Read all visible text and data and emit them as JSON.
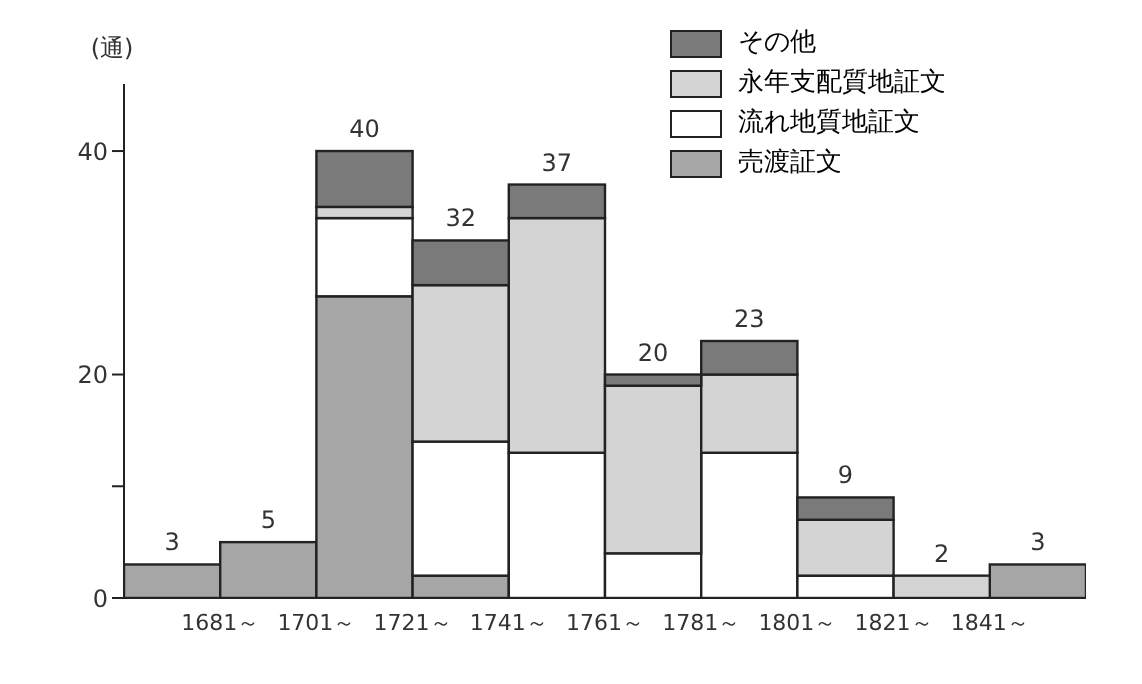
{
  "chart_data": {
    "type": "bar",
    "stacked": true,
    "ylabel": "(通)",
    "x": [
      1671,
      1691,
      1711,
      1731,
      1751,
      1771,
      1791,
      1811,
      1831,
      1851
    ],
    "xlim": [
      1661,
      1861
    ],
    "xticks": [
      {
        "value": 1681,
        "label": "1681～"
      },
      {
        "value": 1701,
        "label": "1701～"
      },
      {
        "value": 1721,
        "label": "1721～"
      },
      {
        "value": 1741,
        "label": "1741～"
      },
      {
        "value": 1761,
        "label": "1761～"
      },
      {
        "value": 1781,
        "label": "1781～"
      },
      {
        "value": 1801,
        "label": "1801～"
      },
      {
        "value": 1821,
        "label": "1821～"
      },
      {
        "value": 1841,
        "label": "1841～"
      }
    ],
    "ylim": [
      0,
      46
    ],
    "yticks": [
      0,
      {
        "value": 10,
        "label": null
      },
      20,
      40
    ],
    "series": [
      {
        "name": "売渡証文",
        "color": "#a6a6a6",
        "values": [
          3,
          5,
          27,
          2,
          0,
          0,
          0,
          0,
          0,
          3
        ]
      },
      {
        "name": "流れ地質地証文",
        "color": "#ffffff",
        "values": [
          0,
          0,
          7,
          12,
          13,
          4,
          13,
          2,
          0,
          0
        ]
      },
      {
        "name": "永年支配質地証文",
        "color": "#d4d4d4",
        "values": [
          0,
          0,
          1,
          14,
          21,
          15,
          7,
          5,
          2,
          0
        ]
      },
      {
        "name": "その他",
        "color": "#7a7a7a",
        "values": [
          0,
          0,
          5,
          4,
          3,
          1,
          3,
          2,
          0,
          0
        ]
      }
    ],
    "totals": [
      "3",
      "5",
      "40",
      "32",
      "37",
      "20",
      "23",
      "9",
      "2",
      "3"
    ],
    "legend": "top right",
    "grid": false
  }
}
